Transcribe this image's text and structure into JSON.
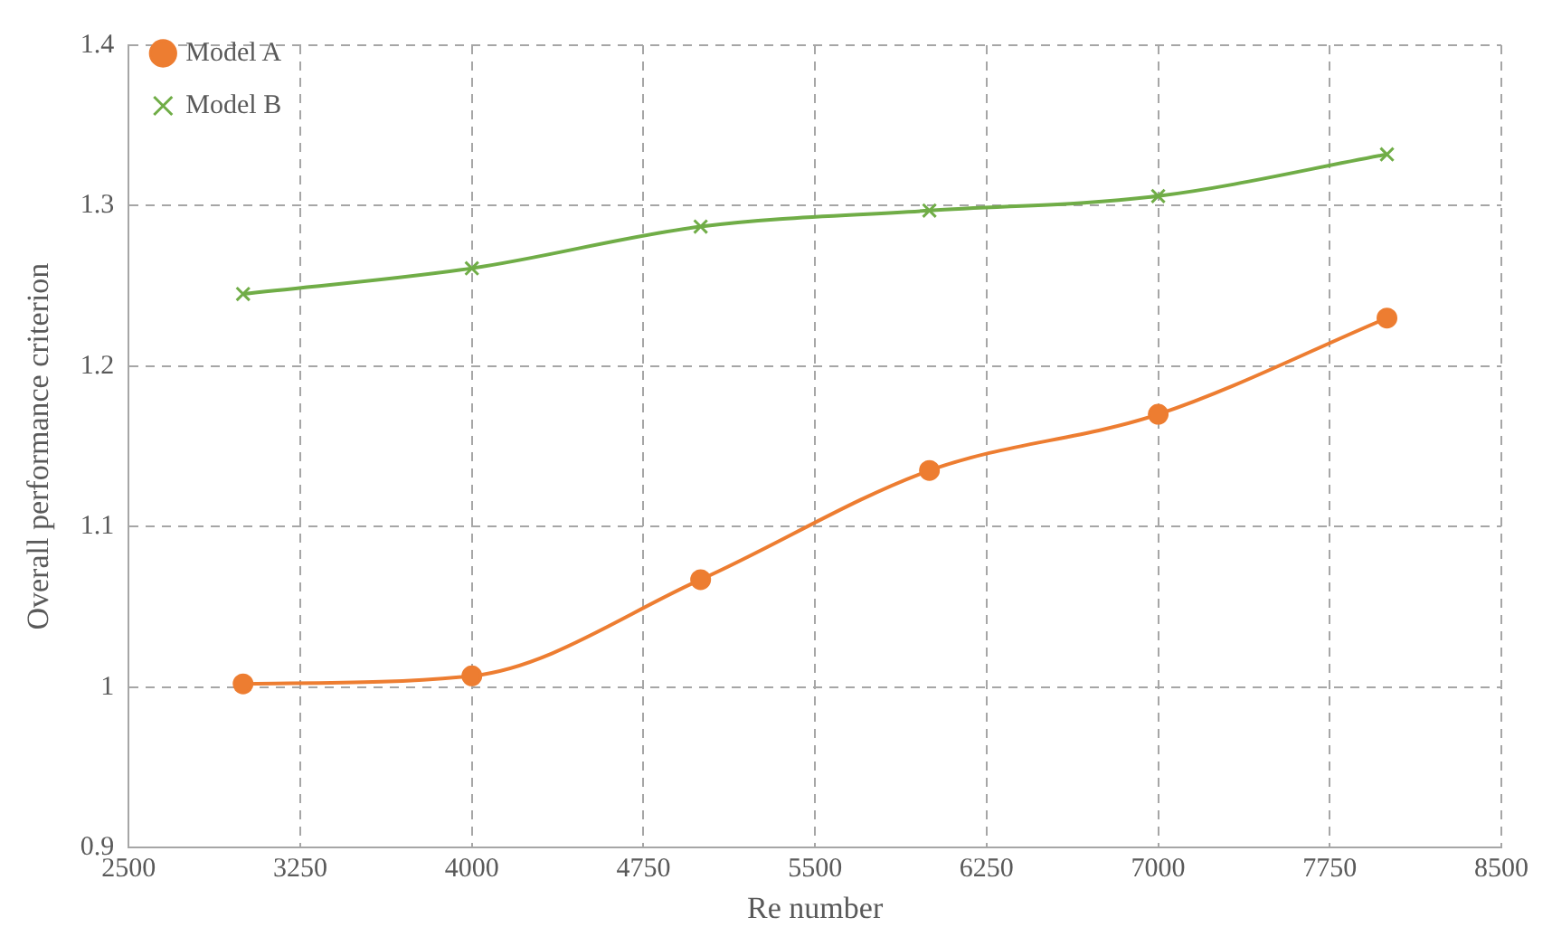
{
  "chart_data": {
    "type": "line",
    "xlabel": "Re number",
    "ylabel": "Overall performance criterion",
    "x": [
      3000,
      4000,
      5000,
      6000,
      7000,
      8000
    ],
    "series": [
      {
        "name": "Model A",
        "color": "#ed7d31",
        "marker": "circle",
        "values": [
          1.002,
          1.007,
          1.067,
          1.135,
          1.17,
          1.23
        ]
      },
      {
        "name": "Model B",
        "color": "#70ad47",
        "marker": "cross",
        "values": [
          1.245,
          1.261,
          1.287,
          1.297,
          1.306,
          1.332
        ]
      }
    ],
    "xlim": [
      2500,
      8500
    ],
    "xticks": [
      2500,
      3250,
      4000,
      4750,
      5500,
      6250,
      7000,
      7750,
      8500
    ],
    "ylim": [
      0.9,
      1.4
    ],
    "yticks": [
      0.9,
      1,
      1.1,
      1.2,
      1.3,
      1.4
    ],
    "grid": true,
    "legend": "top left",
    "line_style": "solid"
  }
}
